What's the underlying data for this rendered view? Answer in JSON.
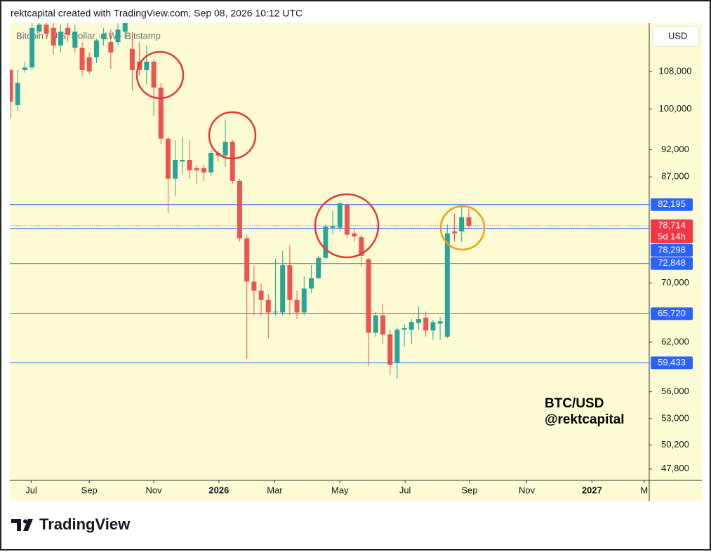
{
  "header": "rektcapital created with TradingView.com, Sep 08, 2026 10:12 UTC",
  "brand": "TradingView",
  "chart_data": {
    "type": "candlestick",
    "title": "Bitcoin / U.S. Dollar · 1W · Bitstamp",
    "currency": "USD",
    "annotations": [
      "BTC/USD",
      "@rektcapital"
    ],
    "log_scale": true,
    "grid": false,
    "up_color": "#26a69a",
    "down_color": "#ef5350",
    "level_color": "#2962ff",
    "open": [
      108300,
      100800,
      108300,
      108900,
      117200,
      118900,
      118100,
      113900,
      118100,
      113400,
      113400,
      111200,
      111200,
      115400,
      114700,
      114700,
      117200,
      113100,
      110200,
      108300,
      110200,
      104500,
      94100,
      86700,
      89800,
      90100,
      88600,
      88600,
      87800,
      91400,
      90900,
      93500,
      86300,
      76700,
      70200,
      68900,
      67600,
      65900,
      65900,
      72600,
      67600,
      65900,
      69200,
      70700,
      73700,
      78400,
      78400,
      82200,
      77500,
      76900,
      73500,
      63200,
      65500,
      63000,
      59400,
      63600,
      63600,
      64500,
      65200,
      63500,
      64400,
      62700,
      77800,
      77800,
      80100
    ],
    "high": [
      108600,
      108300,
      110200,
      119300,
      119300,
      119300,
      119300,
      118900,
      119300,
      118900,
      114700,
      112300,
      115500,
      118100,
      117700,
      119300,
      119300,
      117200,
      114700,
      113900,
      110700,
      105500,
      94500,
      93800,
      94500,
      93800,
      89200,
      89200,
      91800,
      91800,
      97900,
      93800,
      86700,
      77300,
      72600,
      69900,
      68400,
      73500,
      74700,
      75600,
      68900,
      70900,
      72600,
      74000,
      78900,
      81200,
      82700,
      82400,
      78400,
      77300,
      73700,
      66000,
      67100,
      63600,
      63900,
      64400,
      65000,
      66700,
      66000,
      64900,
      65300,
      78900,
      80700,
      81800,
      81500
    ],
    "low": [
      98200,
      99600,
      107700,
      108300,
      116400,
      115500,
      111800,
      112300,
      114700,
      112300,
      107100,
      107500,
      109900,
      113900,
      108600,
      113900,
      115500,
      103700,
      107100,
      105200,
      98600,
      93100,
      80700,
      83600,
      87500,
      86700,
      85800,
      86300,
      87100,
      89800,
      88800,
      85800,
      76200,
      59900,
      65500,
      65500,
      62500,
      65500,
      65500,
      65500,
      65000,
      65500,
      68600,
      70600,
      73500,
      77300,
      77800,
      76700,
      76200,
      72400,
      59000,
      62700,
      61800,
      58000,
      57500,
      61400,
      61800,
      63600,
      62700,
      62300,
      62300,
      62500,
      76200,
      76200,
      78300
    ],
    "close": [
      101500,
      105500,
      108900,
      118100,
      118900,
      116700,
      113900,
      117200,
      116400,
      117200,
      108300,
      108000,
      115100,
      116700,
      112300,
      117700,
      119300,
      108300,
      108300,
      110200,
      104500,
      94100,
      86700,
      90100,
      90100,
      88200,
      88200,
      87800,
      91400,
      90900,
      93500,
      86300,
      76700,
      70200,
      68900,
      67600,
      65900,
      66000,
      72600,
      67600,
      65900,
      69200,
      70700,
      73700,
      78600,
      78700,
      82400,
      77300,
      77000,
      74000,
      63200,
      65500,
      63000,
      59200,
      63600,
      63800,
      64600,
      65000,
      63500,
      64600,
      64700,
      77500,
      77500,
      80100,
      78714
    ],
    "last_price": {
      "value": 78714,
      "label": "78,714"
    },
    "countdown": "5d 14h",
    "levels": [
      {
        "value": 82195,
        "label": "82,195"
      },
      {
        "value": 78298,
        "label": "78,298"
      },
      {
        "value": 72848,
        "label": "72,848"
      },
      {
        "value": 65720,
        "label": "65,720"
      },
      {
        "value": 59433,
        "label": "59,433"
      }
    ],
    "ylim": [
      46700,
      119250
    ],
    "yticks": [
      {
        "value": 108000,
        "label": "108,000"
      },
      {
        "value": 100000,
        "label": "100,000"
      },
      {
        "value": 92000,
        "label": "92,000"
      },
      {
        "value": 87000,
        "label": "87,000"
      },
      {
        "value": 70000,
        "label": "70,000"
      },
      {
        "value": 62000,
        "label": "62,000"
      },
      {
        "value": 56000,
        "label": "56,000"
      },
      {
        "value": 53000,
        "label": "53,000"
      },
      {
        "value": 50200,
        "label": "50,200"
      },
      {
        "value": 47800,
        "label": "47,800"
      }
    ],
    "xlim": [
      -0.1,
      89.2
    ],
    "xticks": [
      {
        "value": 2.9,
        "label": "Jul"
      },
      {
        "value": 11.0,
        "label": "Sep"
      },
      {
        "value": 20.0,
        "label": "Nov"
      },
      {
        "value": 29.1,
        "label": "2026"
      },
      {
        "value": 36.9,
        "label": "Mar"
      },
      {
        "value": 46.0,
        "label": "May"
      },
      {
        "value": 55.1,
        "label": "Jul"
      },
      {
        "value": 64.1,
        "label": "Sep"
      },
      {
        "value": 72.1,
        "label": "Nov"
      },
      {
        "value": 81.2,
        "label": "2027"
      },
      {
        "value": 88.5,
        "label": "M"
      }
    ]
  }
}
